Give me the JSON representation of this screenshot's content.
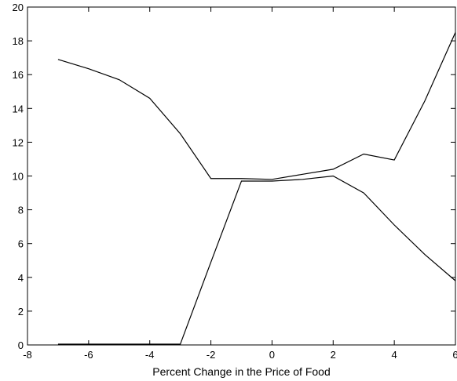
{
  "chart_data": {
    "type": "line",
    "title": "",
    "xlabel": "Percent Change in the Price of Food",
    "ylabel": "",
    "xlim": [
      -8,
      6
    ],
    "ylim": [
      0,
      20
    ],
    "xticks": [
      -8,
      -6,
      -4,
      -2,
      0,
      2,
      4,
      6
    ],
    "yticks": [
      0,
      2,
      4,
      6,
      8,
      10,
      12,
      14,
      16,
      18,
      20
    ],
    "xtick_labels": [
      "-8",
      "-6",
      "-4",
      "-2",
      "0",
      "2",
      "4",
      "6"
    ],
    "ytick_labels": [
      "0",
      "2",
      "4",
      "6",
      "8",
      "10",
      "12",
      "14",
      "16",
      "18",
      "20"
    ],
    "grid": false,
    "legend": "none",
    "series": [
      {
        "x": [
          -7,
          -6,
          -5,
          -4,
          -3,
          -2,
          -1,
          0,
          1,
          2,
          3,
          4,
          5,
          6
        ],
        "y": [
          16.9,
          16.35,
          15.7,
          14.6,
          12.5,
          9.85,
          9.85,
          9.8,
          10.1,
          10.4,
          11.3,
          10.95,
          14.45,
          18.5
        ]
      },
      {
        "x": [
          -7,
          -6,
          -5,
          -4,
          -3,
          -2,
          -1,
          0,
          1,
          2,
          3,
          4,
          5,
          6
        ],
        "y": [
          0.05,
          0.05,
          0.05,
          0.05,
          0.05,
          4.9,
          9.7,
          9.7,
          9.8,
          10.0,
          9.0,
          7.1,
          5.35,
          3.8
        ]
      }
    ]
  }
}
